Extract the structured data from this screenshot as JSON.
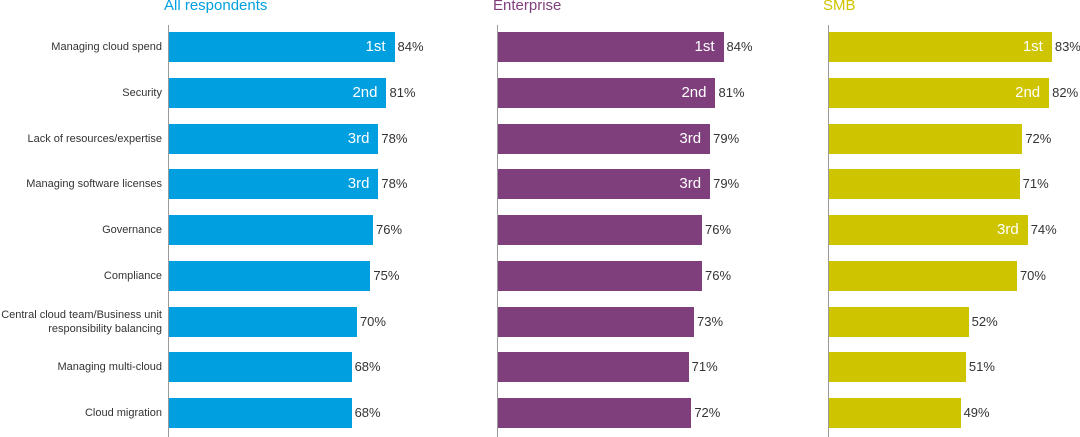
{
  "chart_data": [
    {
      "type": "bar",
      "orientation": "horizontal",
      "title": "All respondents",
      "color": "#00A0E0",
      "categories": [
        "Managing cloud spend",
        "Security",
        "Lack of resources/expertise",
        "Managing software licenses",
        "Governance",
        "Compliance",
        "Central cloud team/Business unit responsibility balancing",
        "Managing multi-cloud",
        "Cloud migration"
      ],
      "values": [
        84,
        81,
        78,
        78,
        76,
        75,
        70,
        68,
        68
      ],
      "value_labels": [
        "84%",
        "81%",
        "78%",
        "78%",
        "76%",
        "75%",
        "70%",
        "68%",
        "68%"
      ],
      "ranks": [
        "1st",
        "2nd",
        "3rd",
        "3rd",
        "",
        "",
        "",
        "",
        ""
      ],
      "xlim": [
        0,
        100
      ],
      "grid": false
    },
    {
      "type": "bar",
      "orientation": "horizontal",
      "title": "Enterprise",
      "color": "#7F3F7D",
      "categories": [
        "Managing cloud spend",
        "Security",
        "Lack of resources/expertise",
        "Managing software licenses",
        "Governance",
        "Compliance",
        "Central cloud team/Business unit responsibility balancing",
        "Managing multi-cloud",
        "Cloud migration"
      ],
      "values": [
        84,
        81,
        79,
        79,
        76,
        76,
        73,
        71,
        72
      ],
      "value_labels": [
        "84%",
        "81%",
        "79%",
        "79%",
        "76%",
        "76%",
        "73%",
        "71%",
        "72%"
      ],
      "ranks": [
        "1st",
        "2nd",
        "3rd",
        "3rd",
        "",
        "",
        "",
        "",
        ""
      ],
      "xlim": [
        0,
        100
      ],
      "grid": false
    },
    {
      "type": "bar",
      "orientation": "horizontal",
      "title": "SMB",
      "color": "#CFC400",
      "categories": [
        "Managing cloud spend",
        "Security",
        "Lack of resources/expertise",
        "Managing software licenses",
        "Governance",
        "Compliance",
        "Central cloud team/Business unit responsibility balancing",
        "Managing multi-cloud",
        "Cloud migration"
      ],
      "values": [
        83,
        82,
        72,
        71,
        74,
        70,
        52,
        51,
        49
      ],
      "value_labels": [
        "83%",
        "82%",
        "72%",
        "71%",
        "74%",
        "70%",
        "52%",
        "51%",
        "49%"
      ],
      "ranks": [
        "1st",
        "2nd",
        "",
        "",
        "3rd",
        "",
        "",
        "",
        ""
      ],
      "xlim": [
        0,
        100
      ],
      "grid": false
    }
  ],
  "category_labels": [
    [
      "Managing cloud spend"
    ],
    [
      "Security"
    ],
    [
      "Lack of resources/expertise"
    ],
    [
      "Managing software licenses"
    ],
    [
      "Governance"
    ],
    [
      "Compliance"
    ],
    [
      "Central cloud team/Business unit",
      "responsibility balancing"
    ],
    [
      "Managing multi-cloud"
    ],
    [
      "Cloud migration"
    ]
  ]
}
